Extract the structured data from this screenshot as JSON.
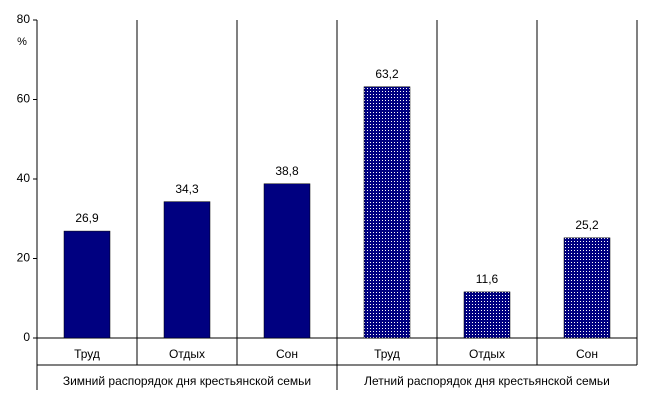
{
  "chart_data": {
    "type": "bar",
    "y_unit": "%",
    "categories": [
      "Труд",
      "Отдых",
      "Сон",
      "Труд",
      "Отдых",
      "Сон"
    ],
    "groups": [
      "Зимний распорядок дня крестьянской семьи",
      "Летний распорядок дня крестьянской семьи"
    ],
    "values": [
      26.9,
      34.3,
      38.8,
      63.2,
      11.6,
      25.2
    ],
    "value_labels": [
      "26,9",
      "34,3",
      "38,8",
      "63,2",
      "11,6",
      "25,2"
    ],
    "color": "#000080",
    "fills": [
      "solid",
      "solid",
      "solid",
      "dotted",
      "dotted",
      "dotted"
    ],
    "ylim": [
      0,
      80
    ],
    "yticks": [
      0,
      20,
      40,
      60,
      80
    ]
  }
}
